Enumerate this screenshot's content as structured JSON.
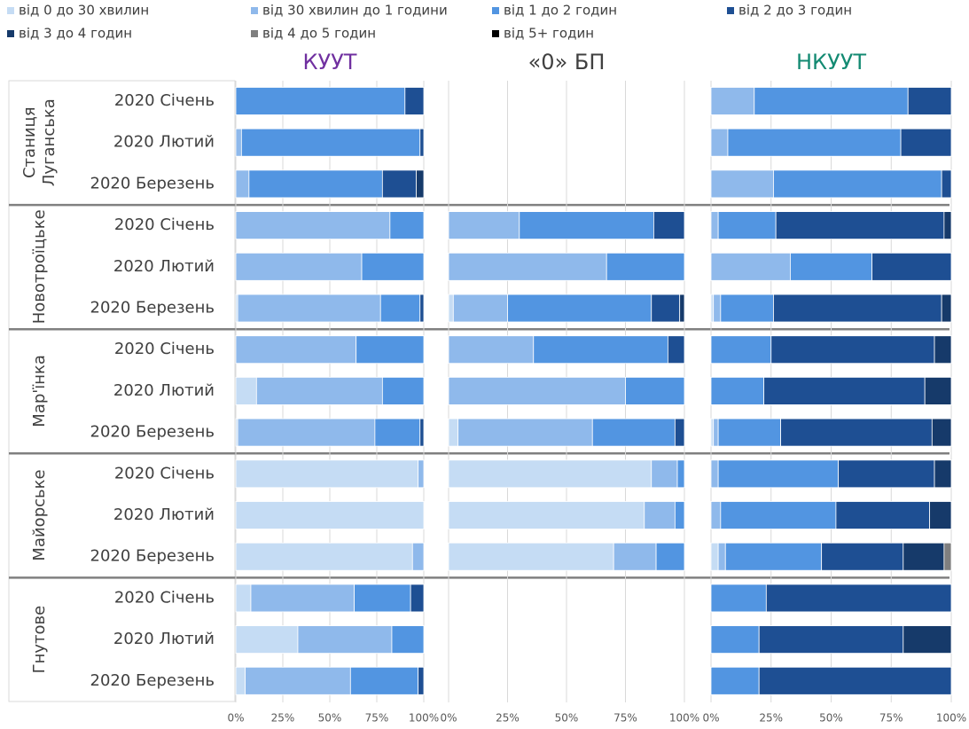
{
  "chart_data": {
    "type": "bar",
    "stacked": true,
    "orientation": "horizontal",
    "categories": [
      "2020 Січень",
      "2020 Лютий",
      "2020 Березень",
      "2020 Січень",
      "2020 Лютий",
      "2020 Березень",
      "2020 Січень",
      "2020 Лютий",
      "2020 Березень",
      "2020 Січень",
      "2020 Лютий",
      "2020 Березень",
      "2020 Січень",
      "2020 Лютий",
      "2020 Березень"
    ],
    "groups": [
      {
        "lines": [
          "Станиця",
          "Луганська"
        ],
        "size": 3
      },
      {
        "lines": [
          "Новотроїцьке"
        ],
        "size": 3
      },
      {
        "lines": [
          "Мар'їнка"
        ],
        "size": 3
      },
      {
        "lines": [
          "Майорське"
        ],
        "size": 3
      },
      {
        "lines": [
          "Гнутове"
        ],
        "size": 3
      }
    ],
    "series": [
      {
        "name": "від 0 до 30 хвилин",
        "color": "#c5dcf4"
      },
      {
        "name": "від 30 хвилин до 1 години",
        "color": "#8fb9eb"
      },
      {
        "name": "від 1 до 2 годин",
        "color": "#5295e1"
      },
      {
        "name": "від 2 до 3 годин",
        "color": "#1e4f93"
      },
      {
        "name": "від 3 до 4 годин",
        "color": "#163a6a"
      },
      {
        "name": "від 4 до 5 годин",
        "color": "#7f7f7f"
      },
      {
        "name": "від 5+ годин",
        "color": "#000000"
      }
    ],
    "xlim": [
      0,
      100
    ],
    "xticks": [
      {
        "value": 0,
        "label": "0%"
      },
      {
        "value": 25,
        "label": "25%"
      },
      {
        "value": 50,
        "label": "50%"
      },
      {
        "value": 75,
        "label": "75%"
      },
      {
        "value": 100,
        "label": "100%"
      }
    ],
    "grid": true,
    "panels": [
      {
        "title": "КУУТ",
        "title_color": "#7030a0",
        "series_values": [
          [
            0,
            0,
            0,
            0,
            0,
            1,
            0,
            11,
            1,
            97,
            100,
            94,
            8,
            33,
            5
          ],
          [
            0,
            3,
            7,
            82,
            67,
            76,
            64,
            67,
            73,
            3,
            0,
            6,
            55,
            50,
            56
          ],
          [
            90,
            95,
            71,
            18,
            33,
            21,
            36,
            22,
            24,
            0,
            0,
            0,
            30,
            17,
            36
          ],
          [
            10,
            2,
            18,
            0,
            0,
            2,
            0,
            0,
            2,
            0,
            0,
            0,
            7,
            0,
            3
          ],
          [
            0,
            0,
            4,
            0,
            0,
            0,
            0,
            0,
            0,
            0,
            0,
            0,
            0,
            0,
            0
          ],
          [
            0,
            0,
            0,
            0,
            0,
            0,
            0,
            0,
            0,
            0,
            0,
            0,
            0,
            0,
            0
          ],
          [
            0,
            0,
            0,
            0,
            0,
            0,
            0,
            0,
            0,
            0,
            0,
            0,
            0,
            0,
            0
          ]
        ]
      },
      {
        "title": "«0» БП",
        "title_color": "#404040",
        "series_values": [
          [
            null,
            null,
            null,
            0,
            0,
            2,
            0,
            0,
            4,
            86,
            83,
            70,
            null,
            null,
            null
          ],
          [
            null,
            null,
            null,
            30,
            67,
            23,
            36,
            75,
            57,
            11,
            13,
            18,
            null,
            null,
            null
          ],
          [
            null,
            null,
            null,
            57,
            33,
            61,
            57,
            25,
            35,
            3,
            4,
            12,
            null,
            null,
            null
          ],
          [
            null,
            null,
            null,
            13,
            0,
            12,
            7,
            0,
            4,
            0,
            0,
            0,
            null,
            null,
            null
          ],
          [
            null,
            null,
            null,
            0,
            0,
            2,
            0,
            0,
            0,
            0,
            0,
            0,
            null,
            null,
            null
          ],
          [
            null,
            null,
            null,
            0,
            0,
            0,
            0,
            0,
            0,
            0,
            0,
            0,
            null,
            null,
            null
          ],
          [
            null,
            null,
            null,
            0,
            0,
            0,
            0,
            0,
            0,
            0,
            0,
            0,
            null,
            null,
            null
          ]
        ]
      },
      {
        "title": "НКУУТ",
        "title_color": "#138a72",
        "series_values": [
          [
            0,
            0,
            0,
            0,
            0,
            1,
            0,
            0,
            1,
            0,
            0,
            3,
            0,
            0,
            0
          ],
          [
            18,
            7,
            26,
            3,
            33,
            3,
            0,
            0,
            2,
            3,
            4,
            3,
            0,
            0,
            0
          ],
          [
            64,
            72,
            70,
            24,
            34,
            22,
            25,
            22,
            26,
            50,
            48,
            40,
            23,
            20,
            20
          ],
          [
            18,
            21,
            4,
            70,
            33,
            70,
            68,
            67,
            63,
            40,
            39,
            34,
            77,
            60,
            80
          ],
          [
            0,
            0,
            0,
            3,
            0,
            4,
            7,
            11,
            8,
            7,
            9,
            17,
            0,
            20,
            0
          ],
          [
            0,
            0,
            0,
            0,
            0,
            0,
            0,
            0,
            0,
            0,
            0,
            3,
            0,
            0,
            0
          ],
          [
            0,
            0,
            0,
            0,
            0,
            0,
            0,
            0,
            0,
            0,
            0,
            0,
            0,
            0,
            0
          ]
        ]
      }
    ]
  }
}
